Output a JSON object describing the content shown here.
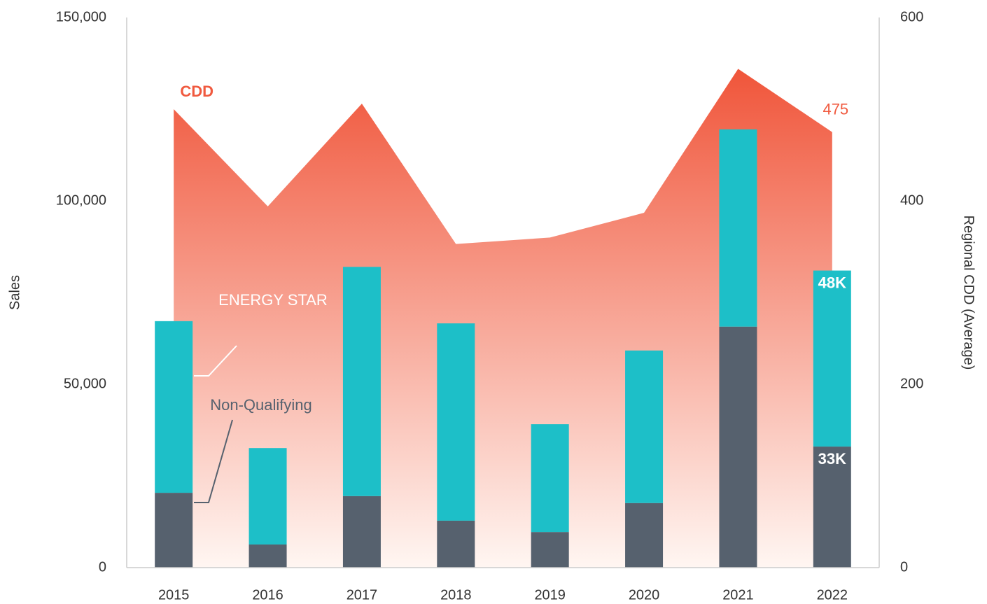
{
  "chart_data": {
    "type": "bar",
    "stacked": true,
    "ylabel": "Sales",
    "y2label": "Regional CDD (Average)",
    "categories": [
      "2015",
      "2016",
      "2017",
      "2018",
      "2019",
      "2020",
      "2021",
      "2022"
    ],
    "series": [
      {
        "name": "Non-Qualifying",
        "type": "bar",
        "color": "#56616e",
        "values": [
          20400,
          6300,
          19500,
          12800,
          9700,
          17600,
          65700,
          33000
        ],
        "value_labels": [
          null,
          null,
          null,
          null,
          null,
          null,
          null,
          "33K"
        ]
      },
      {
        "name": "ENERGY STAR",
        "type": "bar",
        "color": "#1dbfc8",
        "values": [
          46800,
          26300,
          62500,
          53800,
          29400,
          41600,
          53800,
          48000
        ],
        "value_labels": [
          null,
          null,
          null,
          null,
          null,
          null,
          null,
          "48K"
        ]
      },
      {
        "name": "CDD",
        "type": "area",
        "axis": "y2",
        "color": "#f05a3f",
        "values": [
          500,
          394,
          506,
          353,
          360,
          387,
          544,
          475
        ],
        "value_labels": [
          null,
          null,
          null,
          null,
          null,
          null,
          null,
          "475"
        ]
      }
    ],
    "ylim": [
      0,
      150000
    ],
    "yticks": [
      0,
      {
        "value": 50000,
        "label": "50,000"
      },
      {
        "value": 100000,
        "label": "100,000"
      },
      {
        "value": 150000,
        "label": "150,000"
      }
    ],
    "y2lim": [
      0,
      600
    ],
    "y2ticks": [
      0,
      200,
      400,
      600
    ],
    "grid": false
  }
}
